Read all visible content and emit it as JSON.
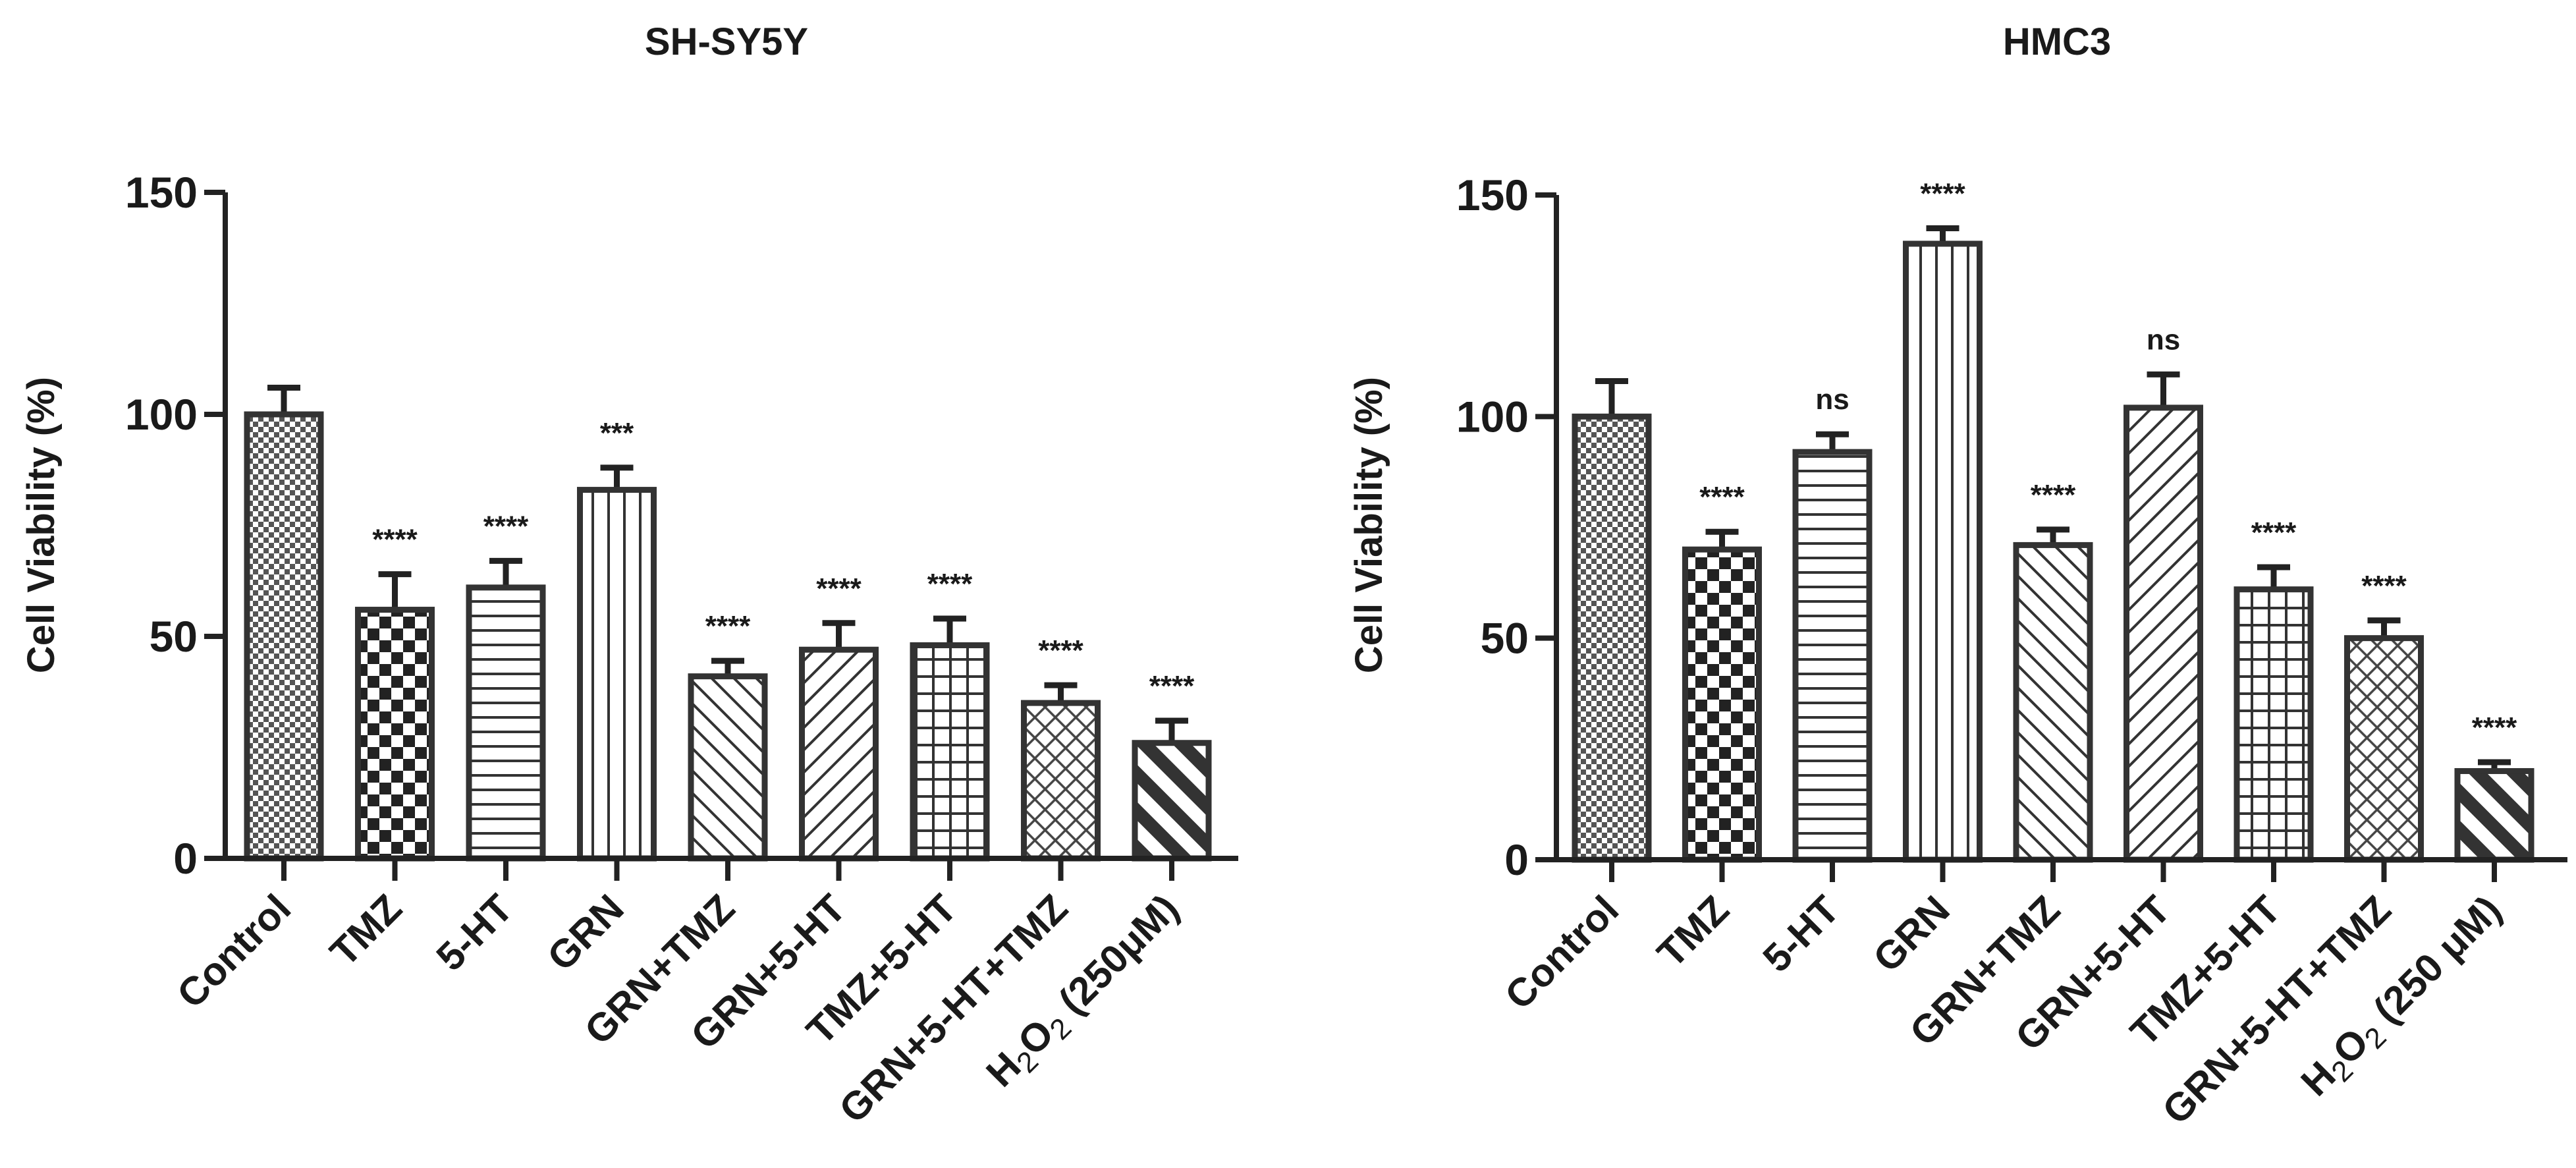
{
  "chart_data": [
    {
      "type": "bar",
      "title": "SH-SY5Y",
      "xlabel": "",
      "ylabel": "Cell Viability (%)",
      "ylim": [
        0,
        150
      ],
      "yticks": [
        "0",
        "50",
        "100",
        "150"
      ],
      "grid": false,
      "categories": [
        "Control",
        "TMZ",
        "5-HT",
        "GRN",
        "GRN+TMZ",
        "GRN+5-HT",
        "TMZ+5-HT",
        "GRN+5-HT+TMZ",
        "H2O2 (250μM)"
      ],
      "values": [
        100,
        56,
        61,
        83,
        41,
        47,
        48,
        35,
        26
      ],
      "errors": [
        6,
        8,
        6,
        5,
        3.5,
        6,
        6,
        4,
        5
      ],
      "significance": [
        "",
        "****",
        "****",
        "***",
        "****",
        "****",
        "****",
        "****",
        "****"
      ],
      "patterns": [
        "fine-check",
        "checker",
        "horizontal",
        "vertical",
        "diag-right",
        "diag-left",
        "grid",
        "crosshatch",
        "wide-diag"
      ]
    },
    {
      "type": "bar",
      "title": "HMC3",
      "xlabel": "",
      "ylabel": "Cell Viability (%)",
      "ylim": [
        0,
        150
      ],
      "yticks": [
        "0",
        "50",
        "100",
        "150"
      ],
      "grid": false,
      "categories": [
        "Control",
        "TMZ",
        "5-HT",
        "GRN",
        "GRN+TMZ",
        "GRN+5-HT",
        "TMZ+5-HT",
        "GRN+5-HT+TMZ",
        "H2O2 (250 μM)"
      ],
      "values": [
        100,
        70,
        92,
        139,
        71,
        102,
        61,
        50,
        20
      ],
      "errors": [
        8,
        4,
        4,
        3.5,
        3.5,
        7.5,
        5,
        4,
        2
      ],
      "significance": [
        "",
        "****",
        "ns",
        "****",
        "****",
        "ns",
        "****",
        "****",
        "****"
      ],
      "patterns": [
        "fine-check",
        "checker",
        "horizontal",
        "vertical",
        "diag-right",
        "diag-left",
        "grid",
        "crosshatch",
        "wide-diag"
      ]
    }
  ]
}
